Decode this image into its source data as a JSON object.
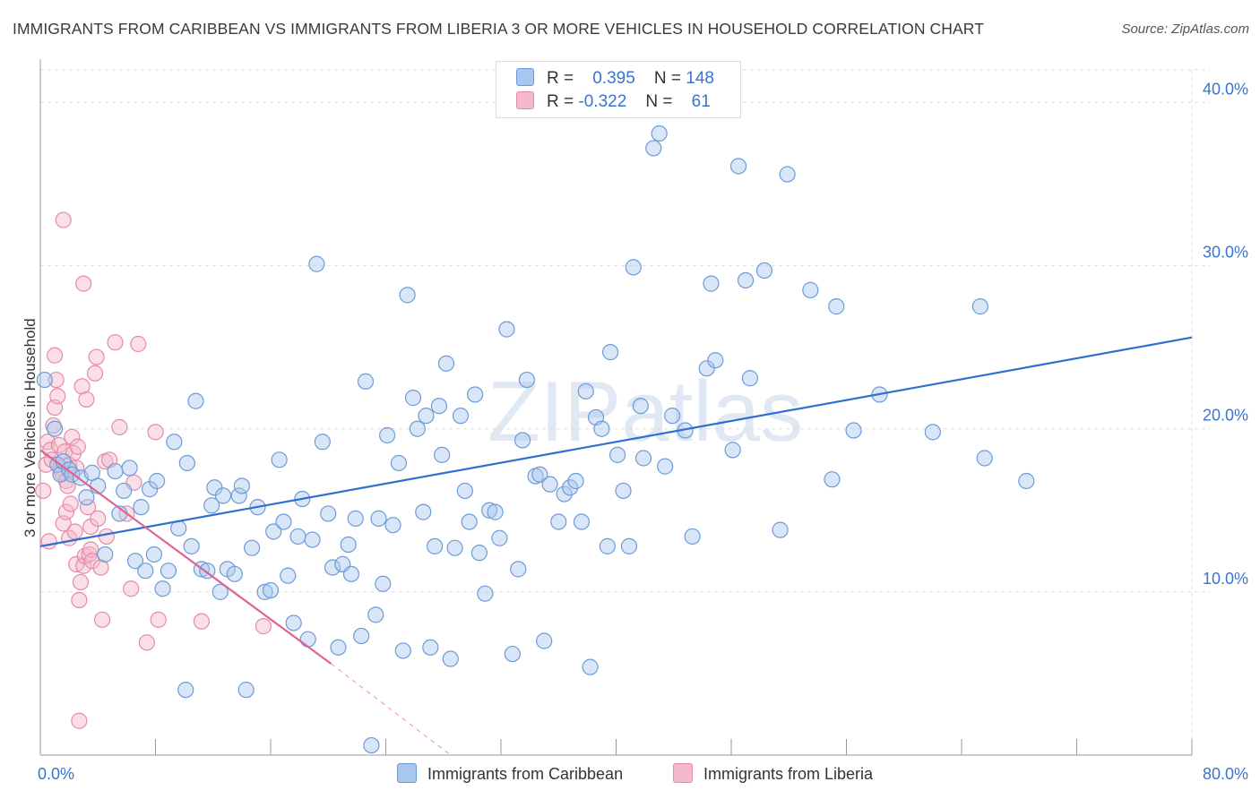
{
  "header": {
    "title": "IMMIGRANTS FROM CARIBBEAN VS IMMIGRANTS FROM LIBERIA 3 OR MORE VEHICLES IN HOUSEHOLD CORRELATION CHART",
    "source": "Source: ZipAtlas.com"
  },
  "legend": {
    "r_label": "R =",
    "n_label": "N =",
    "series1": {
      "r": "0.395",
      "n": "148"
    },
    "series2": {
      "r": "-0.322",
      "n": "61"
    }
  },
  "bottom_legend": {
    "series1": "Immigrants from Caribbean",
    "series2": "Immigrants from Liberia"
  },
  "colors": {
    "caribbean_fill": "#a9c7ee",
    "caribbean_stroke": "#6e9bd8",
    "caribbean_line": "#2f6fcf",
    "liberia_fill": "#f5b9cc",
    "liberia_stroke": "#e68aa8",
    "liberia_line": "#e0628e",
    "tick_label": "#3a74d0",
    "grid": "#dddddd"
  },
  "chart_data": {
    "type": "scatter",
    "title": "IMMIGRANTS FROM CARIBBEAN VS IMMIGRANTS FROM LIBERIA 3 OR MORE VEHICLES IN HOUSEHOLD CORRELATION CHART",
    "xlabel": "",
    "ylabel": "3 or more Vehicles in Household",
    "xlim": [
      0,
      80
    ],
    "ylim": [
      0,
      42
    ],
    "x_tick_labels": [
      "0.0%",
      "80.0%"
    ],
    "y_ticks": [
      10,
      20,
      30,
      40
    ],
    "y_tick_labels": [
      "10.0%",
      "20.0%",
      "30.0%",
      "40.0%"
    ],
    "grid": true,
    "watermark": "ZIPatlas",
    "series": [
      {
        "name": "Immigrants from Caribbean",
        "trend": {
          "x": [
            0,
            80
          ],
          "y": [
            12.8,
            25.6
          ]
        },
        "points": [
          [
            0.3,
            23.0
          ],
          [
            1.0,
            20.0
          ],
          [
            1.2,
            17.8
          ],
          [
            1.4,
            17.2
          ],
          [
            1.6,
            18.0
          ],
          [
            2.0,
            17.5
          ],
          [
            2.2,
            17.2
          ],
          [
            2.8,
            17.0
          ],
          [
            3.2,
            15.8
          ],
          [
            3.6,
            17.3
          ],
          [
            4.0,
            16.5
          ],
          [
            4.5,
            12.3
          ],
          [
            5.2,
            17.4
          ],
          [
            5.5,
            14.8
          ],
          [
            5.8,
            16.2
          ],
          [
            6.2,
            17.6
          ],
          [
            6.6,
            11.9
          ],
          [
            7.0,
            15.2
          ],
          [
            7.3,
            11.3
          ],
          [
            7.6,
            16.3
          ],
          [
            7.9,
            12.3
          ],
          [
            8.1,
            16.8
          ],
          [
            8.5,
            10.2
          ],
          [
            8.9,
            11.3
          ],
          [
            9.3,
            19.2
          ],
          [
            9.6,
            13.9
          ],
          [
            10.1,
            4.0
          ],
          [
            10.2,
            17.9
          ],
          [
            10.5,
            12.8
          ],
          [
            10.8,
            21.7
          ],
          [
            11.2,
            11.4
          ],
          [
            11.6,
            11.3
          ],
          [
            11.9,
            15.3
          ],
          [
            12.1,
            16.4
          ],
          [
            12.5,
            10.0
          ],
          [
            12.7,
            15.9
          ],
          [
            13.0,
            11.4
          ],
          [
            13.5,
            11.1
          ],
          [
            13.8,
            15.9
          ],
          [
            14.0,
            16.5
          ],
          [
            14.3,
            4.0
          ],
          [
            14.7,
            12.7
          ],
          [
            15.1,
            15.2
          ],
          [
            15.6,
            10.0
          ],
          [
            16.0,
            10.1
          ],
          [
            16.2,
            13.7
          ],
          [
            16.6,
            18.1
          ],
          [
            16.9,
            14.3
          ],
          [
            17.2,
            11.0
          ],
          [
            17.6,
            8.1
          ],
          [
            17.9,
            13.4
          ],
          [
            18.2,
            15.7
          ],
          [
            18.6,
            7.1
          ],
          [
            18.9,
            13.2
          ],
          [
            19.2,
            30.1
          ],
          [
            19.6,
            19.2
          ],
          [
            20.0,
            14.8
          ],
          [
            20.3,
            11.5
          ],
          [
            20.7,
            6.6
          ],
          [
            21.0,
            11.7
          ],
          [
            21.4,
            12.9
          ],
          [
            21.6,
            11.1
          ],
          [
            21.9,
            14.5
          ],
          [
            22.3,
            7.3
          ],
          [
            22.6,
            22.9
          ],
          [
            23.0,
            0.6
          ],
          [
            23.3,
            8.6
          ],
          [
            23.5,
            14.5
          ],
          [
            23.8,
            10.5
          ],
          [
            24.1,
            19.6
          ],
          [
            24.5,
            14.1
          ],
          [
            24.9,
            17.9
          ],
          [
            25.2,
            6.4
          ],
          [
            25.5,
            28.2
          ],
          [
            25.9,
            21.9
          ],
          [
            26.2,
            20.0
          ],
          [
            26.6,
            14.9
          ],
          [
            26.8,
            20.8
          ],
          [
            27.1,
            6.6
          ],
          [
            27.4,
            12.8
          ],
          [
            27.7,
            21.4
          ],
          [
            27.9,
            18.4
          ],
          [
            28.2,
            24.0
          ],
          [
            28.5,
            5.9
          ],
          [
            28.8,
            12.7
          ],
          [
            29.2,
            20.8
          ],
          [
            29.5,
            16.2
          ],
          [
            29.8,
            14.3
          ],
          [
            30.2,
            22.1
          ],
          [
            30.5,
            12.4
          ],
          [
            30.9,
            9.9
          ],
          [
            31.2,
            15.0
          ],
          [
            31.6,
            14.9
          ],
          [
            31.9,
            13.3
          ],
          [
            32.4,
            26.1
          ],
          [
            32.8,
            6.2
          ],
          [
            33.2,
            11.4
          ],
          [
            33.5,
            19.3
          ],
          [
            33.8,
            23.0
          ],
          [
            34.4,
            17.1
          ],
          [
            34.7,
            17.2
          ],
          [
            35.0,
            7.0
          ],
          [
            35.4,
            16.6
          ],
          [
            36.0,
            14.3
          ],
          [
            36.4,
            16.0
          ],
          [
            36.8,
            16.4
          ],
          [
            37.2,
            16.8
          ],
          [
            37.6,
            14.3
          ],
          [
            37.9,
            22.3
          ],
          [
            38.2,
            5.4
          ],
          [
            38.6,
            20.7
          ],
          [
            39.0,
            20.0
          ],
          [
            39.4,
            12.8
          ],
          [
            39.6,
            24.7
          ],
          [
            40.1,
            18.4
          ],
          [
            40.5,
            16.2
          ],
          [
            40.9,
            12.8
          ],
          [
            41.2,
            29.9
          ],
          [
            41.7,
            21.4
          ],
          [
            41.9,
            18.2
          ],
          [
            42.6,
            37.2
          ],
          [
            43.0,
            38.1
          ],
          [
            43.4,
            17.7
          ],
          [
            43.9,
            20.8
          ],
          [
            44.8,
            19.9
          ],
          [
            45.3,
            13.4
          ],
          [
            46.3,
            23.7
          ],
          [
            46.6,
            28.9
          ],
          [
            46.9,
            24.2
          ],
          [
            48.1,
            18.7
          ],
          [
            48.5,
            36.1
          ],
          [
            49.0,
            29.1
          ],
          [
            49.3,
            23.1
          ],
          [
            50.3,
            29.7
          ],
          [
            51.4,
            13.8
          ],
          [
            51.9,
            35.6
          ],
          [
            53.5,
            28.5
          ],
          [
            55.0,
            16.9
          ],
          [
            55.3,
            27.5
          ],
          [
            56.5,
            19.9
          ],
          [
            58.3,
            22.1
          ],
          [
            62.0,
            19.8
          ],
          [
            65.3,
            27.5
          ],
          [
            65.6,
            18.2
          ],
          [
            68.5,
            16.8
          ]
        ]
      },
      {
        "name": "Immigrants from Liberia",
        "trend": {
          "x": [
            0,
            20.2
          ],
          "y": [
            18.7,
            5.6
          ],
          "dashed_to": [
            28.5,
            0
          ]
        },
        "points": [
          [
            0.2,
            16.2
          ],
          [
            0.4,
            17.8
          ],
          [
            0.5,
            19.2
          ],
          [
            0.6,
            13.1
          ],
          [
            0.7,
            18.7
          ],
          [
            0.8,
            18.1
          ],
          [
            0.9,
            20.2
          ],
          [
            1.0,
            21.3
          ],
          [
            1.0,
            24.5
          ],
          [
            1.1,
            23.0
          ],
          [
            1.2,
            22.0
          ],
          [
            1.3,
            19.0
          ],
          [
            1.4,
            17.6
          ],
          [
            1.5,
            17.3
          ],
          [
            1.6,
            32.8
          ],
          [
            1.6,
            14.2
          ],
          [
            1.7,
            18.6
          ],
          [
            1.8,
            16.8
          ],
          [
            1.8,
            14.9
          ],
          [
            1.9,
            16.5
          ],
          [
            2.0,
            17.8
          ],
          [
            2.0,
            13.3
          ],
          [
            2.1,
            15.4
          ],
          [
            2.2,
            19.5
          ],
          [
            2.3,
            18.5
          ],
          [
            2.4,
            13.7
          ],
          [
            2.5,
            17.6
          ],
          [
            2.5,
            11.7
          ],
          [
            2.6,
            18.9
          ],
          [
            2.7,
            9.5
          ],
          [
            2.7,
            2.1
          ],
          [
            2.8,
            10.6
          ],
          [
            2.9,
            22.6
          ],
          [
            3.0,
            11.6
          ],
          [
            3.0,
            28.9
          ],
          [
            3.1,
            12.2
          ],
          [
            3.2,
            21.8
          ],
          [
            3.3,
            15.2
          ],
          [
            3.4,
            12.3
          ],
          [
            3.5,
            14.0
          ],
          [
            3.5,
            12.6
          ],
          [
            3.6,
            11.9
          ],
          [
            3.8,
            23.4
          ],
          [
            3.9,
            24.4
          ],
          [
            4.0,
            14.5
          ],
          [
            4.2,
            11.5
          ],
          [
            4.3,
            8.3
          ],
          [
            4.5,
            18.0
          ],
          [
            4.6,
            13.4
          ],
          [
            4.8,
            18.1
          ],
          [
            5.2,
            25.3
          ],
          [
            5.5,
            20.1
          ],
          [
            6.0,
            14.8
          ],
          [
            6.3,
            10.2
          ],
          [
            6.5,
            16.7
          ],
          [
            6.8,
            25.2
          ],
          [
            7.4,
            6.9
          ],
          [
            8.0,
            19.8
          ],
          [
            8.2,
            8.3
          ],
          [
            11.2,
            8.2
          ],
          [
            15.5,
            7.9
          ]
        ]
      }
    ]
  }
}
